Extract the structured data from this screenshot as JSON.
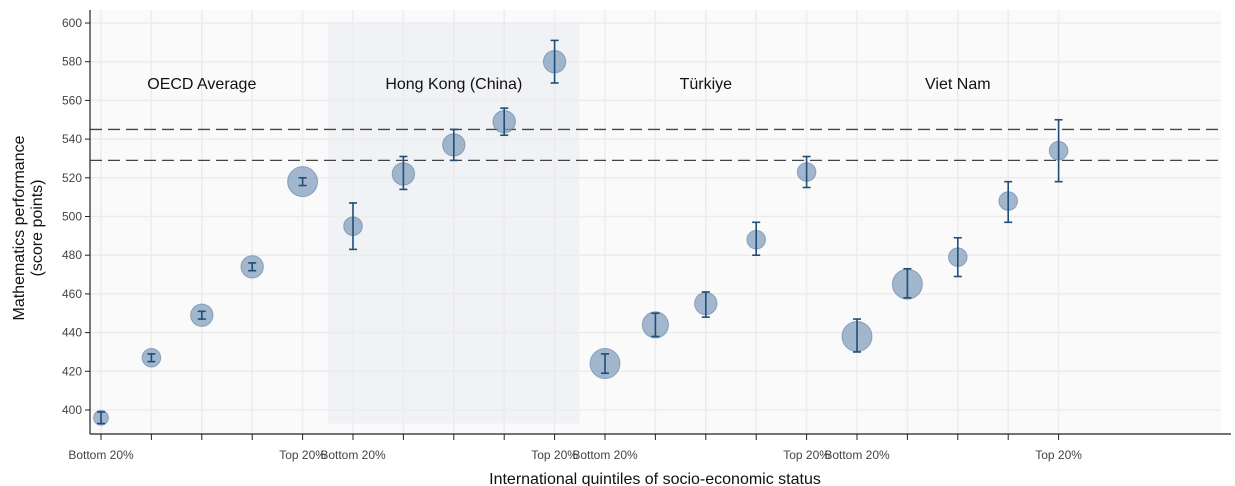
{
  "chart_data": {
    "type": "scatter",
    "title": "",
    "xlabel": "International quintiles of socio-economic status",
    "ylabel_lines": [
      "Mathematics performance",
      "(score points)"
    ],
    "ylim": [
      390,
      605
    ],
    "y_ticks": [
      400,
      420,
      440,
      460,
      480,
      500,
      520,
      540,
      560,
      580,
      600
    ],
    "grid": true,
    "reference_lines": [
      545,
      529
    ],
    "x_tick_labels": [
      "Bottom 20%",
      "",
      "",
      "",
      "Top 20%",
      "Bottom 20%",
      "",
      "",
      "",
      "Top 20%",
      "Bottom 20%",
      "",
      "",
      "",
      "Top 20%",
      "Bottom 20%",
      "",
      "",
      "",
      "Top 20%"
    ],
    "highlighted_group": "Hong Kong (China)",
    "groups": [
      {
        "name": "OECD Average",
        "points": [
          {
            "quintile": 1,
            "value": 396,
            "ci": [
              393,
              399
            ],
            "size": 1
          },
          {
            "quintile": 2,
            "value": 427,
            "ci": [
              425,
              429
            ],
            "size": 2
          },
          {
            "quintile": 3,
            "value": 449,
            "ci": [
              447,
              451
            ],
            "size": 3
          },
          {
            "quintile": 4,
            "value": 474,
            "ci": [
              472,
              476
            ],
            "size": 3
          },
          {
            "quintile": 5,
            "value": 518,
            "ci": [
              516,
              520
            ],
            "size": 5
          }
        ]
      },
      {
        "name": "Hong Kong (China)",
        "points": [
          {
            "quintile": 1,
            "value": 495,
            "ci": [
              483,
              507
            ],
            "size": 2
          },
          {
            "quintile": 2,
            "value": 522,
            "ci": [
              514,
              531
            ],
            "size": 3
          },
          {
            "quintile": 3,
            "value": 537,
            "ci": [
              529,
              545
            ],
            "size": 3
          },
          {
            "quintile": 4,
            "value": 549,
            "ci": [
              542,
              556
            ],
            "size": 3
          },
          {
            "quintile": 5,
            "value": 580,
            "ci": [
              569,
              591
            ],
            "size": 3
          }
        ]
      },
      {
        "name": "Türkiye",
        "points": [
          {
            "quintile": 1,
            "value": 424,
            "ci": [
              419,
              429
            ],
            "size": 5
          },
          {
            "quintile": 2,
            "value": 444,
            "ci": [
              438,
              450
            ],
            "size": 4
          },
          {
            "quintile": 3,
            "value": 455,
            "ci": [
              448,
              461
            ],
            "size": 3
          },
          {
            "quintile": 4,
            "value": 488,
            "ci": [
              480,
              497
            ],
            "size": 2
          },
          {
            "quintile": 5,
            "value": 523,
            "ci": [
              515,
              531
            ],
            "size": 2
          }
        ]
      },
      {
        "name": "Viet Nam",
        "points": [
          {
            "quintile": 1,
            "value": 438,
            "ci": [
              430,
              447
            ],
            "size": 5
          },
          {
            "quintile": 2,
            "value": 465,
            "ci": [
              458,
              473
            ],
            "size": 5
          },
          {
            "quintile": 3,
            "value": 479,
            "ci": [
              469,
              489
            ],
            "size": 2
          },
          {
            "quintile": 4,
            "value": 508,
            "ci": [
              497,
              518
            ],
            "size": 2
          },
          {
            "quintile": 5,
            "value": 534,
            "ci": [
              518,
              550
            ],
            "size": 2
          }
        ]
      }
    ],
    "colors": {
      "marker_fill": "#7f9dbc",
      "marker_stroke": "#4a6f95",
      "error_bar": "#1f4e79",
      "highlight_band": "#f0f2f5",
      "grid": "#ececec",
      "axis": "#222222",
      "reference_line": "#444444"
    }
  }
}
